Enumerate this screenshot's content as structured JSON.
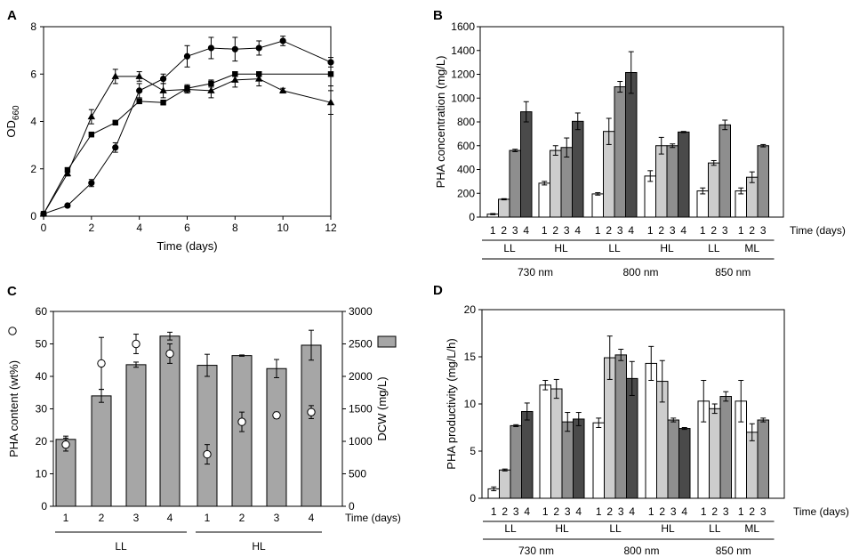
{
  "chart_data": [
    {
      "panel": "A",
      "type": "line",
      "xlabel": "Time (days)",
      "ylabel": "OD",
      "ylabel_sub": "660",
      "xlim": [
        0,
        12
      ],
      "ylim": [
        0,
        8
      ],
      "xticks": [
        "0",
        "2",
        "4",
        "6",
        "8",
        "10",
        "12"
      ],
      "yticks": [
        "0",
        "2",
        "4",
        "6",
        "8"
      ],
      "series": [
        {
          "marker": "circle",
          "x": [
            0,
            1,
            2,
            3,
            4,
            5,
            6,
            7,
            8,
            9,
            10,
            12
          ],
          "y": [
            0.1,
            0.45,
            1.4,
            2.9,
            5.3,
            5.8,
            6.75,
            7.1,
            7.05,
            7.1,
            7.4,
            6.5
          ],
          "err": [
            0.05,
            0.05,
            0.15,
            0.2,
            0.3,
            0.2,
            0.45,
            0.45,
            0.5,
            0.3,
            0.2,
            0.2
          ]
        },
        {
          "marker": "square",
          "x": [
            0,
            1,
            2,
            3,
            4,
            5,
            6,
            7,
            8,
            9,
            12
          ],
          "y": [
            0.1,
            1.95,
            3.45,
            3.95,
            4.85,
            4.8,
            5.4,
            5.6,
            6.0,
            6.0,
            6.0
          ],
          "err": [
            0.05,
            0.1,
            0.1,
            0.05,
            0.1,
            0.1,
            0.15,
            0.15,
            0.1,
            0.1,
            0.5
          ]
        },
        {
          "marker": "triangle",
          "x": [
            0,
            1,
            2,
            3,
            4,
            5,
            6,
            7,
            8,
            9,
            10,
            12
          ],
          "y": [
            0.1,
            1.8,
            4.2,
            5.9,
            5.9,
            5.3,
            5.35,
            5.3,
            5.75,
            5.8,
            5.3,
            4.8
          ],
          "err": [
            0.05,
            0.1,
            0.3,
            0.3,
            0.2,
            0.3,
            0.15,
            0.3,
            0.3,
            0.3,
            0.1,
            0.5
          ]
        }
      ]
    },
    {
      "panel": "B",
      "type": "bar",
      "ylabel": "PHA concentration (mg/L)",
      "ylim": [
        0,
        1600
      ],
      "yticks": [
        "0",
        "200",
        "400",
        "600",
        "800",
        "1000",
        "1200",
        "1400",
        "1600"
      ],
      "time_label": "Time (days)",
      "groups": [
        {
          "label": "LL",
          "values": [
            25,
            150,
            560,
            885
          ],
          "err": [
            5,
            5,
            10,
            85
          ]
        },
        {
          "label": "HL",
          "values": [
            285,
            560,
            585,
            805
          ],
          "err": [
            15,
            40,
            80,
            70
          ]
        },
        {
          "label": "LL",
          "values": [
            195,
            720,
            1095,
            1215
          ],
          "err": [
            10,
            110,
            45,
            175
          ]
        },
        {
          "label": "HL",
          "values": [
            345,
            600,
            600,
            715
          ],
          "err": [
            45,
            70,
            15,
            5
          ]
        },
        {
          "label": "LL",
          "values": [
            220,
            455,
            775
          ],
          "err": [
            25,
            20,
            40
          ]
        },
        {
          "label": "ML",
          "values": [
            220,
            335,
            600
          ],
          "err": [
            25,
            45,
            10
          ]
        }
      ],
      "wavelengths": [
        "730 nm",
        "800 nm",
        "850 nm"
      ]
    },
    {
      "panel": "C",
      "type": "bar",
      "ylabel": "PHA content (wt%)",
      "ylabel_right": "DCW (mg/L)",
      "ylim": [
        0,
        60
      ],
      "ylim_right": [
        0,
        3000
      ],
      "yticks": [
        "0",
        "10",
        "20",
        "30",
        "40",
        "50",
        "60"
      ],
      "yticks_right": [
        "0",
        "500",
        "1000",
        "1500",
        "2000",
        "2500",
        "3000"
      ],
      "time_label": "Time (days)",
      "categories": [
        "1",
        "2",
        "3",
        "4",
        "1",
        "2",
        "3",
        "4"
      ],
      "dcw": [
        1030,
        1700,
        2180,
        2620,
        2170,
        2320,
        2120,
        2480
      ],
      "dcw_err": [
        50,
        100,
        40,
        60,
        170,
        10,
        140,
        230
      ],
      "content": [
        19,
        44,
        50,
        47,
        16,
        26,
        28,
        29
      ],
      "content_err": [
        2,
        8,
        3,
        3,
        3,
        3,
        1,
        2
      ],
      "conditions": [
        "LL",
        "HL"
      ]
    },
    {
      "panel": "D",
      "type": "bar",
      "ylabel": "PHA productivity (mg/L/h)",
      "ylim": [
        0,
        20
      ],
      "yticks": [
        "0",
        "5",
        "10",
        "15",
        "20"
      ],
      "time_label": "Time (days)",
      "groups": [
        {
          "label": "LL",
          "values": [
            1.0,
            3.0,
            7.7,
            9.2
          ],
          "err": [
            0.2,
            0.1,
            0.1,
            0.9
          ]
        },
        {
          "label": "HL",
          "values": [
            12.0,
            11.6,
            8.1,
            8.4
          ],
          "err": [
            0.5,
            1.0,
            1.0,
            0.7
          ]
        },
        {
          "label": "LL",
          "values": [
            8.0,
            14.9,
            15.2,
            12.7
          ],
          "err": [
            0.5,
            2.3,
            0.6,
            1.8
          ]
        },
        {
          "label": "HL",
          "values": [
            14.3,
            12.4,
            8.3,
            7.4
          ],
          "err": [
            1.8,
            2.2,
            0.2,
            0.1
          ]
        },
        {
          "label": "LL",
          "values": [
            10.3,
            9.5,
            10.8
          ],
          "err": [
            2.2,
            0.5,
            0.5
          ]
        },
        {
          "label": "ML",
          "values": [
            10.3,
            7.0,
            8.3
          ],
          "err": [
            2.2,
            0.9,
            0.2
          ]
        }
      ],
      "wavelengths": [
        "730 nm",
        "800 nm",
        "850 nm"
      ]
    }
  ],
  "colors": {
    "bar_shades": [
      "#ffffff",
      "#cdcdcd",
      "#8e8e8e",
      "#4a4a4a"
    ],
    "bar_c": "#a6a6a6",
    "marker_open": "#ffffff"
  }
}
